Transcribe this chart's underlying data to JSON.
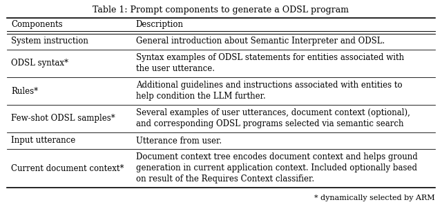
{
  "title": "Table 1: Prompt components to generate a ODSL program",
  "col1_header": "Components",
  "col2_header": "Description",
  "rows": [
    {
      "component": "System instruction",
      "description": "General introduction about Semantic Interpreter and ODSL.",
      "desc_lines": 1
    },
    {
      "component": "ODSL syntax*",
      "description": [
        "Syntax examples of ODSL statements for entities associated with",
        "the user utterance."
      ],
      "desc_lines": 2
    },
    {
      "component": "Rules*",
      "description": [
        "Additional guidelines and instructions associated with entities to",
        "help condition the LLM further."
      ],
      "desc_lines": 2
    },
    {
      "component": "Few-shot ODSL samples*",
      "description": [
        "Several examples of user utterances, document context (optional),",
        "and corresponding ODSL programs selected via semantic search"
      ],
      "desc_lines": 2
    },
    {
      "component": "Input utterance",
      "description": "Utterance from user.",
      "desc_lines": 1
    },
    {
      "component": "Current document context*",
      "description": [
        "Document context tree encodes document context and helps ground",
        "generation in current application context. Included optionally based",
        "on result of the Requires Context classifier."
      ],
      "desc_lines": 3
    }
  ],
  "footnote": "* dynamically selected by ARM",
  "bg_color": "#ffffff",
  "text_color": "#000000",
  "line_color": "#000000",
  "font_size": 8.5,
  "title_font_size": 9.0,
  "col_split": 0.295
}
